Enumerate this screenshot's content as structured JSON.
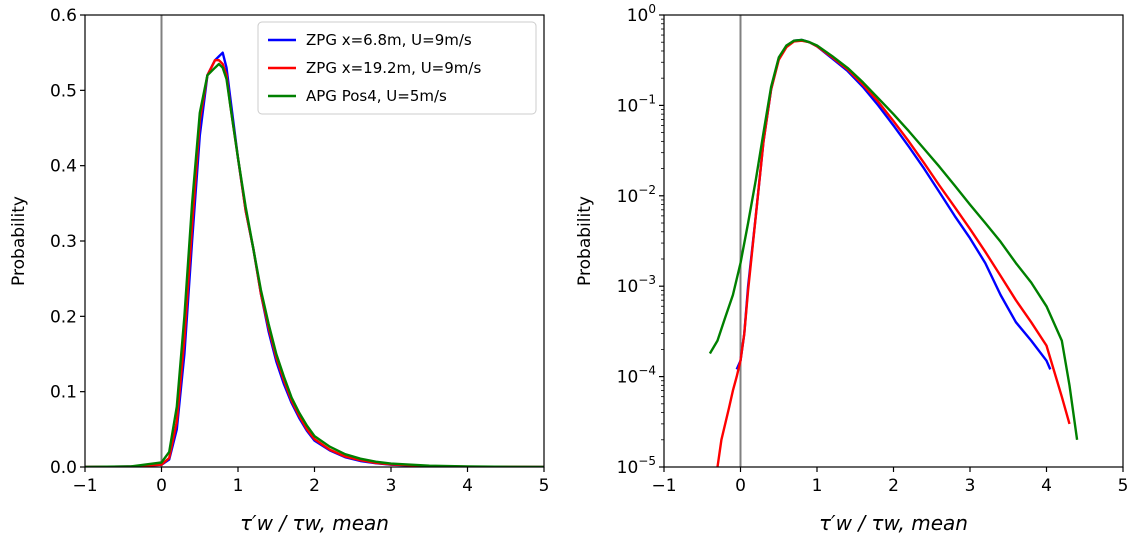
{
  "chart_data": [
    {
      "type": "line",
      "xlabel": "τ′w / τw, mean",
      "ylabel": "Probability",
      "xlim": [
        -1,
        5
      ],
      "ylim": [
        0,
        0.6
      ],
      "yscale": "linear",
      "xticks": [
        "−1",
        "0",
        "1",
        "2",
        "3",
        "4",
        "5"
      ],
      "yticks": [
        "0.0",
        "0.1",
        "0.2",
        "0.3",
        "0.4",
        "0.5",
        "0.6"
      ],
      "vline_x": 0,
      "legend": "top-right",
      "series": [
        {
          "name": "ZPG x=6.8m, U=9m/s",
          "color": "#0000ff",
          "x": [
            -1.0,
            -0.4,
            0.0,
            0.1,
            0.2,
            0.3,
            0.4,
            0.5,
            0.6,
            0.7,
            0.75,
            0.8,
            0.85,
            0.9,
            1.0,
            1.1,
            1.2,
            1.3,
            1.4,
            1.5,
            1.6,
            1.7,
            1.8,
            1.9,
            2.0,
            2.2,
            2.4,
            2.6,
            2.8,
            3.0,
            3.5,
            4.0,
            5.0
          ],
          "y": [
            0,
            0.0005,
            0.003,
            0.01,
            0.05,
            0.15,
            0.3,
            0.44,
            0.52,
            0.54,
            0.545,
            0.55,
            0.53,
            0.49,
            0.41,
            0.34,
            0.29,
            0.23,
            0.18,
            0.14,
            0.11,
            0.085,
            0.065,
            0.048,
            0.035,
            0.022,
            0.013,
            0.008,
            0.005,
            0.003,
            0.001,
            0.0003,
            0
          ]
        },
        {
          "name": "ZPG x=19.2m, U=9m/s",
          "color": "#ff0000",
          "x": [
            -1.0,
            -0.4,
            0.0,
            0.1,
            0.2,
            0.3,
            0.4,
            0.5,
            0.6,
            0.7,
            0.75,
            0.8,
            0.85,
            0.9,
            1.0,
            1.1,
            1.2,
            1.3,
            1.4,
            1.5,
            1.6,
            1.7,
            1.8,
            1.9,
            2.0,
            2.2,
            2.4,
            2.6,
            2.8,
            3.0,
            3.5,
            4.0,
            5.0
          ],
          "y": [
            0,
            0.0005,
            0.003,
            0.012,
            0.06,
            0.17,
            0.32,
            0.46,
            0.52,
            0.54,
            0.54,
            0.535,
            0.52,
            0.48,
            0.41,
            0.34,
            0.29,
            0.23,
            0.185,
            0.145,
            0.115,
            0.088,
            0.068,
            0.05,
            0.037,
            0.023,
            0.014,
            0.009,
            0.0055,
            0.0035,
            0.0012,
            0.0004,
            0
          ]
        },
        {
          "name": "APG Pos4,  U=5m/s",
          "color": "#008000",
          "x": [
            -1.0,
            -0.4,
            0.0,
            0.1,
            0.2,
            0.3,
            0.4,
            0.5,
            0.6,
            0.7,
            0.75,
            0.8,
            0.85,
            0.9,
            1.0,
            1.1,
            1.2,
            1.3,
            1.4,
            1.5,
            1.6,
            1.7,
            1.8,
            1.9,
            2.0,
            2.2,
            2.4,
            2.6,
            2.8,
            3.0,
            3.5,
            4.0,
            5.0
          ],
          "y": [
            0,
            0.0008,
            0.006,
            0.02,
            0.08,
            0.2,
            0.35,
            0.47,
            0.52,
            0.53,
            0.535,
            0.53,
            0.515,
            0.48,
            0.41,
            0.345,
            0.29,
            0.235,
            0.19,
            0.15,
            0.12,
            0.092,
            0.072,
            0.055,
            0.041,
            0.027,
            0.017,
            0.011,
            0.007,
            0.0045,
            0.0017,
            0.0006,
            0
          ]
        }
      ]
    },
    {
      "type": "line",
      "xlabel": "τ′w / τw, mean",
      "ylabel": "Probability",
      "xlim": [
        -1,
        5
      ],
      "ylim": [
        1e-05,
        1
      ],
      "yscale": "log",
      "xticks": [
        "−1",
        "0",
        "1",
        "2",
        "3",
        "4",
        "5"
      ],
      "yticks": [
        {
          "base": "10",
          "exp": "0"
        },
        {
          "base": "10",
          "exp": "−1"
        },
        {
          "base": "10",
          "exp": "−2"
        },
        {
          "base": "10",
          "exp": "−3"
        },
        {
          "base": "10",
          "exp": "−4"
        },
        {
          "base": "10",
          "exp": "−5"
        }
      ],
      "vline_x": 0,
      "series": [
        {
          "name": "ZPG x=6.8m, U=9m/s",
          "color": "#0000ff",
          "x": [
            -0.05,
            0.0,
            0.05,
            0.1,
            0.2,
            0.3,
            0.4,
            0.5,
            0.6,
            0.7,
            0.8,
            0.9,
            1.0,
            1.2,
            1.4,
            1.6,
            1.8,
            2.0,
            2.2,
            2.4,
            2.6,
            2.8,
            3.0,
            3.2,
            3.4,
            3.6,
            3.8,
            4.0,
            4.05
          ],
          "y": [
            0.00012,
            0.00015,
            0.0003,
            0.001,
            0.006,
            0.04,
            0.15,
            0.33,
            0.45,
            0.52,
            0.53,
            0.5,
            0.45,
            0.33,
            0.24,
            0.16,
            0.1,
            0.06,
            0.035,
            0.02,
            0.011,
            0.006,
            0.0034,
            0.0018,
            0.0008,
            0.0004,
            0.00025,
            0.00015,
            0.00012
          ]
        },
        {
          "name": "ZPG x=19.2m, U=9m/s",
          "color": "#ff0000",
          "x": [
            -0.3,
            -0.25,
            -0.2,
            -0.15,
            -0.1,
            -0.05,
            0.0,
            0.05,
            0.1,
            0.2,
            0.3,
            0.4,
            0.5,
            0.6,
            0.7,
            0.8,
            0.9,
            1.0,
            1.2,
            1.4,
            1.6,
            1.8,
            2.0,
            2.2,
            2.4,
            2.6,
            2.8,
            3.0,
            3.2,
            3.4,
            3.6,
            3.8,
            4.0,
            4.2,
            4.3
          ],
          "y": [
            1e-05,
            2e-05,
            3e-05,
            4.5e-05,
            7e-05,
            0.0001,
            0.00015,
            0.0003,
            0.0009,
            0.006,
            0.04,
            0.15,
            0.32,
            0.44,
            0.51,
            0.52,
            0.5,
            0.45,
            0.34,
            0.25,
            0.17,
            0.11,
            0.067,
            0.04,
            0.023,
            0.013,
            0.0075,
            0.0043,
            0.0024,
            0.0013,
            0.0007,
            0.0004,
            0.00022,
            6e-05,
            3e-05
          ]
        },
        {
          "name": "APG Pos4,  U=5m/s",
          "color": "#008000",
          "x": [
            -0.4,
            -0.3,
            -0.2,
            -0.1,
            0.0,
            0.1,
            0.2,
            0.3,
            0.4,
            0.5,
            0.6,
            0.7,
            0.8,
            0.9,
            1.0,
            1.2,
            1.4,
            1.6,
            1.8,
            2.0,
            2.2,
            2.4,
            2.6,
            2.8,
            3.0,
            3.2,
            3.4,
            3.6,
            3.8,
            4.0,
            4.2,
            4.3,
            4.4
          ],
          "y": [
            0.00018,
            0.00025,
            0.00045,
            0.0008,
            0.0018,
            0.005,
            0.015,
            0.05,
            0.16,
            0.34,
            0.46,
            0.52,
            0.53,
            0.5,
            0.46,
            0.35,
            0.26,
            0.18,
            0.12,
            0.08,
            0.052,
            0.033,
            0.021,
            0.013,
            0.008,
            0.005,
            0.0031,
            0.0018,
            0.0011,
            0.0006,
            0.00025,
            8e-05,
            2e-05
          ]
        }
      ]
    }
  ]
}
